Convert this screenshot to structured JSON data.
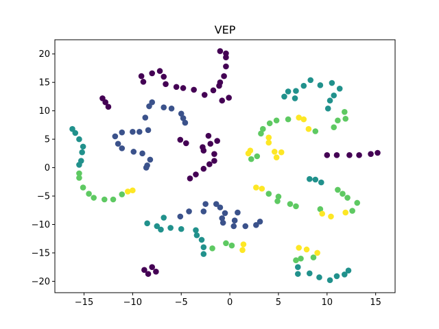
{
  "chart_data": {
    "type": "scatter",
    "title": "VEP",
    "xlabel": "",
    "ylabel": "",
    "xlim": [
      -18,
      17
    ],
    "ylim": [
      -22,
      22.5
    ],
    "xticks": [
      -15,
      -10,
      -5,
      0,
      5,
      10,
      15
    ],
    "yticks": [
      -20,
      -15,
      -10,
      -5,
      0,
      5,
      10,
      15,
      20
    ],
    "xtick_labels": [
      "−15",
      "−10",
      "−5",
      "0",
      "5",
      "10",
      "15"
    ],
    "ytick_labels": [
      "−20",
      "−15",
      "−10",
      "−5",
      "0",
      "5",
      "10",
      "15",
      "20"
    ],
    "grid": false,
    "legend": "none",
    "colormap": "viridis",
    "colormap_stops": [
      "#440154",
      "#3b528b",
      "#21918c",
      "#5ec962",
      "#fde725"
    ],
    "points": [
      {
        "x": -1,
        "y": 20.5,
        "c": 0.0
      },
      {
        "x": -0.4,
        "y": 20.1,
        "c": 0.0
      },
      {
        "x": -0.4,
        "y": 19.4,
        "c": 0.0
      },
      {
        "x": -0.4,
        "y": 17.8,
        "c": 0.0
      },
      {
        "x": -0.6,
        "y": 16.1,
        "c": 0.0
      },
      {
        "x": -1,
        "y": 15,
        "c": 0.0
      },
      {
        "x": -1.1,
        "y": 14.4,
        "c": 0.0
      },
      {
        "x": -1.7,
        "y": 13.6,
        "c": 0.0
      },
      {
        "x": -0.1,
        "y": 12.3,
        "c": 0.0
      },
      {
        "x": -0.8,
        "y": 11.8,
        "c": 0.0
      },
      {
        "x": -2.6,
        "y": 12.8,
        "c": 0.0
      },
      {
        "x": -3.7,
        "y": 13.7,
        "c": 0.0
      },
      {
        "x": -4.8,
        "y": 14,
        "c": 0.0
      },
      {
        "x": -5.5,
        "y": 14.2,
        "c": 0.0
      },
      {
        "x": -6.6,
        "y": 14.7,
        "c": 0.0
      },
      {
        "x": -6.8,
        "y": 16,
        "c": 0.0
      },
      {
        "x": -7.2,
        "y": 17,
        "c": 0.0
      },
      {
        "x": -8,
        "y": 16.6,
        "c": 0.0
      },
      {
        "x": -9.1,
        "y": 16.1,
        "c": 0.0
      },
      {
        "x": -8.9,
        "y": 15.1,
        "c": 0.0
      },
      {
        "x": -13.1,
        "y": 12.2,
        "c": 0.0
      },
      {
        "x": -12.8,
        "y": 11.5,
        "c": 0.0
      },
      {
        "x": -12.5,
        "y": 10.7,
        "c": 0.0
      },
      {
        "x": -2.2,
        "y": 5.6,
        "c": 0.0
      },
      {
        "x": -1.3,
        "y": 4.7,
        "c": 0.0
      },
      {
        "x": -2.0,
        "y": 4.2,
        "c": 0.0
      },
      {
        "x": -2.8,
        "y": 3.6,
        "c": 0.0
      },
      {
        "x": -2.7,
        "y": 3.0,
        "c": 0.0
      },
      {
        "x": -1.6,
        "y": 2.4,
        "c": 0.0
      },
      {
        "x": -1.6,
        "y": 1.2,
        "c": 0.0
      },
      {
        "x": -2.1,
        "y": 0.6,
        "c": 0.0
      },
      {
        "x": -2.7,
        "y": -0.2,
        "c": 0.0
      },
      {
        "x": -3.5,
        "y": -1.2,
        "c": 0.0
      },
      {
        "x": -4.1,
        "y": -1.9,
        "c": 0.0
      },
      {
        "x": -5.1,
        "y": 4.9,
        "c": 0.0
      },
      {
        "x": -4.5,
        "y": 4.3,
        "c": 0.0
      },
      {
        "x": -8.8,
        "y": -18,
        "c": 0.0
      },
      {
        "x": -8.4,
        "y": -18.7,
        "c": 0.0
      },
      {
        "x": -8.0,
        "y": -17.5,
        "c": 0.0
      },
      {
        "x": -7.6,
        "y": -18.3,
        "c": 0.0
      },
      {
        "x": 10.0,
        "y": 2.2,
        "c": 0.0
      },
      {
        "x": 11.0,
        "y": 2.2,
        "c": 0.0
      },
      {
        "x": 12.3,
        "y": 2.2,
        "c": 0.0
      },
      {
        "x": 13.3,
        "y": 2.2,
        "c": 0.0
      },
      {
        "x": 14.5,
        "y": 2.4,
        "c": 0.0
      },
      {
        "x": 15.2,
        "y": 2.6,
        "c": 0.0
      },
      {
        "x": -8.0,
        "y": 11.5,
        "c": 0.25
      },
      {
        "x": -8.3,
        "y": 10.8,
        "c": 0.25
      },
      {
        "x": -6.8,
        "y": 10.6,
        "c": 0.25
      },
      {
        "x": -6.0,
        "y": 10.4,
        "c": 0.25
      },
      {
        "x": -5.0,
        "y": 9.5,
        "c": 0.25
      },
      {
        "x": -4.8,
        "y": 8.7,
        "c": 0.25
      },
      {
        "x": -4.6,
        "y": 7.9,
        "c": 0.25
      },
      {
        "x": -8.7,
        "y": 8.8,
        "c": 0.25
      },
      {
        "x": -8.4,
        "y": 6.6,
        "c": 0.25
      },
      {
        "x": -9.3,
        "y": 6.3,
        "c": 0.25
      },
      {
        "x": -10.0,
        "y": 6.3,
        "c": 0.25
      },
      {
        "x": -11.1,
        "y": 6.2,
        "c": 0.25
      },
      {
        "x": -11.8,
        "y": 5.5,
        "c": 0.25
      },
      {
        "x": -11.5,
        "y": 4.2,
        "c": 0.25
      },
      {
        "x": -11.1,
        "y": 3.4,
        "c": 0.25
      },
      {
        "x": -9.9,
        "y": 2.8,
        "c": 0.25
      },
      {
        "x": -9.0,
        "y": 2.5,
        "c": 0.25
      },
      {
        "x": -8.2,
        "y": 1.4,
        "c": 0.25
      },
      {
        "x": -8.5,
        "y": 0.4,
        "c": 0.25
      },
      {
        "x": -8.6,
        "y": 0.0,
        "c": 0.25
      },
      {
        "x": -2.5,
        "y": -6.4,
        "c": 0.25
      },
      {
        "x": -1.4,
        "y": -6.4,
        "c": 0.25
      },
      {
        "x": -2.7,
        "y": -7.7,
        "c": 0.25
      },
      {
        "x": -1.0,
        "y": -7.0,
        "c": 0.25
      },
      {
        "x": -0.5,
        "y": -8.0,
        "c": 0.25
      },
      {
        "x": -0.8,
        "y": -8.9,
        "c": 0.25
      },
      {
        "x": -0.7,
        "y": -9.7,
        "c": 0.25
      },
      {
        "x": 0.8,
        "y": -7.9,
        "c": 0.25
      },
      {
        "x": 0.5,
        "y": -9.3,
        "c": 0.25
      },
      {
        "x": 0.4,
        "y": -10.3,
        "c": 0.25
      },
      {
        "x": 1.6,
        "y": -10.3,
        "c": 0.25
      },
      {
        "x": 2.7,
        "y": -10.1,
        "c": 0.25
      },
      {
        "x": 3.1,
        "y": -9.5,
        "c": 0.25
      },
      {
        "x": -4.2,
        "y": -7.7,
        "c": 0.25
      },
      {
        "x": -5.1,
        "y": -8.6,
        "c": 0.25
      },
      {
        "x": 8.3,
        "y": 15.4,
        "c": 0.5
      },
      {
        "x": 7.6,
        "y": 14.4,
        "c": 0.5
      },
      {
        "x": 9.3,
        "y": 14.5,
        "c": 0.5
      },
      {
        "x": 10.5,
        "y": 14.9,
        "c": 0.5
      },
      {
        "x": 11.3,
        "y": 13.9,
        "c": 0.5
      },
      {
        "x": 10.7,
        "y": 12.7,
        "c": 0.5
      },
      {
        "x": 10.3,
        "y": 11.8,
        "c": 0.5
      },
      {
        "x": 10.1,
        "y": 10.4,
        "c": 0.5
      },
      {
        "x": 6.8,
        "y": 13.5,
        "c": 0.5
      },
      {
        "x": 6.0,
        "y": 13.4,
        "c": 0.5
      },
      {
        "x": 5.6,
        "y": 12.5,
        "c": 0.5
      },
      {
        "x": 6.7,
        "y": 12.2,
        "c": 0.5
      },
      {
        "x": -16.2,
        "y": 6.8,
        "c": 0.5
      },
      {
        "x": -15.9,
        "y": 6.1,
        "c": 0.5
      },
      {
        "x": -15.5,
        "y": 5.0,
        "c": 0.5
      },
      {
        "x": -15.1,
        "y": 3.7,
        "c": 0.5
      },
      {
        "x": -15.2,
        "y": 2.7,
        "c": 0.5
      },
      {
        "x": -15.3,
        "y": 1.2,
        "c": 0.5
      },
      {
        "x": -15.5,
        "y": 0.5,
        "c": 0.5
      },
      {
        "x": 8.2,
        "y": -2.0,
        "c": 0.5
      },
      {
        "x": 8.8,
        "y": -2.1,
        "c": 0.5
      },
      {
        "x": 9.4,
        "y": -2.6,
        "c": 0.5
      },
      {
        "x": -8.5,
        "y": -9.8,
        "c": 0.5
      },
      {
        "x": -7.5,
        "y": -10.3,
        "c": 0.5
      },
      {
        "x": -7.1,
        "y": -10.9,
        "c": 0.5
      },
      {
        "x": -6.8,
        "y": -8.8,
        "c": 0.5
      },
      {
        "x": -6.1,
        "y": -10.6,
        "c": 0.5
      },
      {
        "x": -5.0,
        "y": -10.8,
        "c": 0.5
      },
      {
        "x": -3.5,
        "y": -11.0,
        "c": 0.5
      },
      {
        "x": -3.4,
        "y": -11.9,
        "c": 0.5
      },
      {
        "x": -2.9,
        "y": -12.7,
        "c": 0.5
      },
      {
        "x": -2.7,
        "y": -14.0,
        "c": 0.5
      },
      {
        "x": -2.7,
        "y": -15.2,
        "c": 0.5
      },
      {
        "x": 7.0,
        "y": -17.5,
        "c": 0.5
      },
      {
        "x": 7.0,
        "y": -18.7,
        "c": 0.5
      },
      {
        "x": 8.2,
        "y": -18.6,
        "c": 0.5
      },
      {
        "x": 9.2,
        "y": -19.3,
        "c": 0.5
      },
      {
        "x": 10.3,
        "y": -19.8,
        "c": 0.5
      },
      {
        "x": 11.0,
        "y": -19.1,
        "c": 0.5
      },
      {
        "x": 11.8,
        "y": -18.8,
        "c": 0.5
      },
      {
        "x": 12.2,
        "y": -18.1,
        "c": 0.5
      },
      {
        "x": -15.5,
        "y": -1.0,
        "c": 0.75
      },
      {
        "x": -15.5,
        "y": -1.8,
        "c": 0.75
      },
      {
        "x": -15.1,
        "y": -3.5,
        "c": 0.75
      },
      {
        "x": -14.5,
        "y": -4.6,
        "c": 0.75
      },
      {
        "x": -14.0,
        "y": -5.3,
        "c": 0.75
      },
      {
        "x": -12.9,
        "y": -5.6,
        "c": 0.75
      },
      {
        "x": -12.0,
        "y": -5.6,
        "c": 0.75
      },
      {
        "x": -11.1,
        "y": -4.7,
        "c": 0.75
      },
      {
        "x": 4.1,
        "y": 7.8,
        "c": 0.75
      },
      {
        "x": 4.8,
        "y": 8.3,
        "c": 0.75
      },
      {
        "x": 3.4,
        "y": 6.8,
        "c": 0.75
      },
      {
        "x": 3.2,
        "y": 6.0,
        "c": 0.75
      },
      {
        "x": 6.0,
        "y": 8.5,
        "c": 0.75
      },
      {
        "x": 2.8,
        "y": 2.0,
        "c": 0.75
      },
      {
        "x": 2.2,
        "y": 1.5,
        "c": 0.75
      },
      {
        "x": 11.8,
        "y": 9.8,
        "c": 0.75
      },
      {
        "x": 11.1,
        "y": 8.3,
        "c": 0.75
      },
      {
        "x": 11.9,
        "y": 8.6,
        "c": 0.75
      },
      {
        "x": 10.7,
        "y": 7.1,
        "c": 0.75
      },
      {
        "x": 8.8,
        "y": 6.4,
        "c": 0.75
      },
      {
        "x": 11.1,
        "y": -3.9,
        "c": 0.75
      },
      {
        "x": 11.6,
        "y": -4.6,
        "c": 0.75
      },
      {
        "x": 12.1,
        "y": -5.3,
        "c": 0.75
      },
      {
        "x": 13.1,
        "y": -6.2,
        "c": 0.75
      },
      {
        "x": 12.6,
        "y": -7.6,
        "c": 0.75
      },
      {
        "x": 9.3,
        "y": -7.3,
        "c": 0.75
      },
      {
        "x": 4.0,
        "y": -4.6,
        "c": 0.75
      },
      {
        "x": 5.0,
        "y": -5.1,
        "c": 0.75
      },
      {
        "x": 4.9,
        "y": -5.9,
        "c": 0.75
      },
      {
        "x": 6.2,
        "y": -6.4,
        "c": 0.75
      },
      {
        "x": 6.8,
        "y": -6.8,
        "c": 0.75
      },
      {
        "x": -1.8,
        "y": -14.2,
        "c": 0.75
      },
      {
        "x": -0.4,
        "y": -13.3,
        "c": 0.75
      },
      {
        "x": 0.2,
        "y": -13.7,
        "c": 0.75
      },
      {
        "x": 6.8,
        "y": -16.3,
        "c": 0.75
      },
      {
        "x": 7.3,
        "y": -16.0,
        "c": 0.75
      },
      {
        "x": 8.6,
        "y": -15.8,
        "c": 0.75
      },
      {
        "x": 7.1,
        "y": 8.8,
        "c": 1.0
      },
      {
        "x": 7.6,
        "y": 8.5,
        "c": 1.0
      },
      {
        "x": 8.1,
        "y": 6.8,
        "c": 1.0
      },
      {
        "x": 4.0,
        "y": 5.3,
        "c": 1.0
      },
      {
        "x": 4.0,
        "y": 4.4,
        "c": 1.0
      },
      {
        "x": 4.6,
        "y": 2.8,
        "c": 1.0
      },
      {
        "x": 5.3,
        "y": 2.7,
        "c": 1.0
      },
      {
        "x": 4.8,
        "y": 1.8,
        "c": 1.0
      },
      {
        "x": 1.9,
        "y": 2.5,
        "c": 1.0
      },
      {
        "x": 2.1,
        "y": 3.0,
        "c": 1.0
      },
      {
        "x": -10.0,
        "y": -4.0,
        "c": 1.0
      },
      {
        "x": -10.5,
        "y": -4.2,
        "c": 1.0
      },
      {
        "x": 2.7,
        "y": -3.5,
        "c": 1.0
      },
      {
        "x": 3.3,
        "y": -3.7,
        "c": 1.0
      },
      {
        "x": 9.5,
        "y": -8.1,
        "c": 1.0
      },
      {
        "x": 10.4,
        "y": -8.6,
        "c": 1.0
      },
      {
        "x": 11.9,
        "y": -7.9,
        "c": 1.0
      },
      {
        "x": 1.4,
        "y": -13.5,
        "c": 1.0
      },
      {
        "x": 1.3,
        "y": -14.5,
        "c": 1.0
      },
      {
        "x": 7.1,
        "y": -14.1,
        "c": 1.0
      },
      {
        "x": 7.9,
        "y": -14.4,
        "c": 1.0
      },
      {
        "x": 9.0,
        "y": -15.0,
        "c": 1.0
      }
    ]
  }
}
